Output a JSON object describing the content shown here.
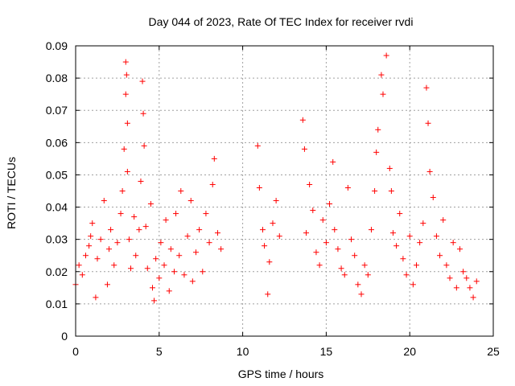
{
  "chart_data": {
    "type": "scatter",
    "title": "Day 044 of 2023, Rate Of TEC Index for receiver rvdi",
    "xlabel": "GPS time / hours",
    "ylabel": "ROTI / TECUs",
    "xlim": [
      0,
      25
    ],
    "ylim": [
      0,
      0.09
    ],
    "x_ticks": [
      "0",
      "5",
      "10",
      "15",
      "20",
      "25"
    ],
    "y_ticks": [
      "0",
      "0.01",
      "0.02",
      "0.03",
      "0.04",
      "0.05",
      "0.06",
      "0.07",
      "0.08",
      "0.09"
    ],
    "grid": true,
    "marker": "+",
    "color": "#ff0000",
    "series": [
      {
        "x": [
          0.0,
          0.2,
          0.4,
          0.6,
          0.8,
          0.9,
          1.0,
          1.2,
          1.3,
          1.5,
          1.7,
          1.9,
          2.0,
          2.1,
          2.3,
          2.5,
          2.7,
          2.8,
          2.9,
          3.0,
          3.0,
          3.05,
          3.1,
          3.1,
          3.2,
          3.3,
          3.5,
          3.6,
          3.8,
          3.9,
          4.0,
          4.05,
          4.1,
          4.2,
          4.3,
          4.5,
          4.6,
          4.7,
          4.8,
          5.0,
          5.1,
          5.3,
          5.4,
          5.6,
          5.7,
          5.9,
          6.0,
          6.2,
          6.3,
          6.5,
          6.7,
          6.9,
          7.0,
          7.2,
          7.4,
          7.6,
          7.8,
          8.0,
          8.2,
          8.3,
          8.5,
          8.7,
          10.9,
          11.0,
          11.2,
          11.3,
          11.5,
          11.6,
          11.8,
          12.0,
          12.2,
          13.6,
          13.7,
          13.8,
          14.0,
          14.2,
          14.4,
          14.6,
          14.8,
          15.0,
          15.2,
          15.4,
          15.5,
          15.7,
          15.9,
          16.1,
          16.3,
          16.5,
          16.7,
          16.9,
          17.1,
          17.3,
          17.5,
          17.7,
          17.9,
          18.0,
          18.1,
          18.3,
          18.4,
          18.6,
          18.8,
          18.9,
          19.0,
          19.2,
          19.4,
          19.6,
          19.8,
          20.0,
          20.2,
          20.4,
          20.6,
          20.8,
          21.0,
          21.1,
          21.2,
          21.4,
          21.6,
          21.8,
          22.0,
          22.2,
          22.4,
          22.6,
          22.8,
          23.0,
          23.2,
          23.4,
          23.6,
          23.8,
          24.0
        ],
        "y": [
          0.016,
          0.022,
          0.019,
          0.025,
          0.028,
          0.031,
          0.035,
          0.012,
          0.024,
          0.03,
          0.042,
          0.016,
          0.027,
          0.033,
          0.022,
          0.029,
          0.038,
          0.045,
          0.058,
          0.085,
          0.075,
          0.081,
          0.066,
          0.051,
          0.03,
          0.021,
          0.037,
          0.025,
          0.033,
          0.048,
          0.079,
          0.069,
          0.059,
          0.034,
          0.021,
          0.041,
          0.015,
          0.011,
          0.024,
          0.018,
          0.029,
          0.022,
          0.036,
          0.014,
          0.027,
          0.02,
          0.038,
          0.025,
          0.045,
          0.019,
          0.031,
          0.042,
          0.017,
          0.026,
          0.033,
          0.02,
          0.038,
          0.029,
          0.047,
          0.055,
          0.032,
          0.027,
          0.059,
          0.046,
          0.033,
          0.028,
          0.013,
          0.023,
          0.035,
          0.042,
          0.031,
          0.067,
          0.058,
          0.032,
          0.047,
          0.039,
          0.026,
          0.022,
          0.036,
          0.029,
          0.041,
          0.054,
          0.033,
          0.027,
          0.021,
          0.019,
          0.046,
          0.03,
          0.025,
          0.016,
          0.013,
          0.022,
          0.019,
          0.033,
          0.045,
          0.057,
          0.064,
          0.081,
          0.075,
          0.087,
          0.052,
          0.045,
          0.032,
          0.028,
          0.038,
          0.024,
          0.019,
          0.031,
          0.016,
          0.022,
          0.029,
          0.035,
          0.077,
          0.066,
          0.051,
          0.043,
          0.031,
          0.025,
          0.036,
          0.022,
          0.018,
          0.029,
          0.015,
          0.027,
          0.02,
          0.018,
          0.015,
          0.012,
          0.017
        ]
      }
    ]
  }
}
